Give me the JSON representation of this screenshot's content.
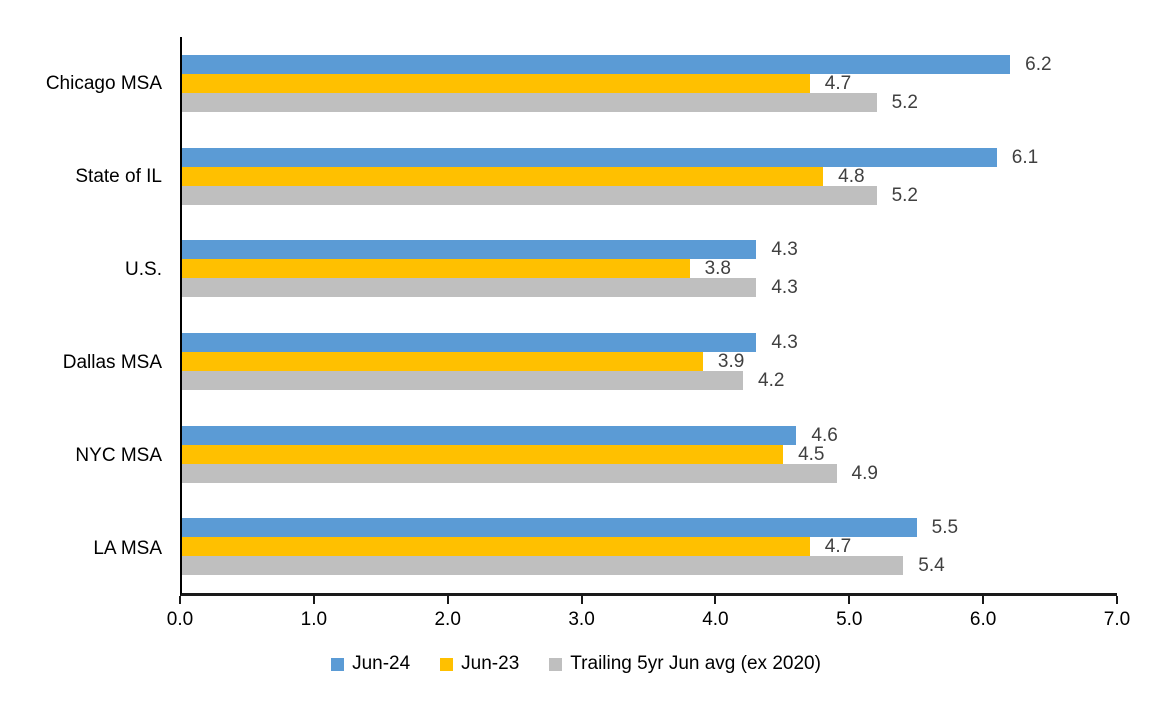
{
  "chart_data": {
    "type": "bar",
    "orientation": "horizontal",
    "title": "",
    "xlabel": "",
    "ylabel": "",
    "grid": false,
    "legend_position": "bottom",
    "xlim": [
      0,
      7
    ],
    "x_ticks": [
      "0.0",
      "1.0",
      "2.0",
      "3.0",
      "4.0",
      "5.0",
      "6.0",
      "7.0"
    ],
    "categories": [
      "Chicago MSA",
      "State of IL",
      "U.S.",
      "Dallas MSA",
      "NYC MSA",
      "LA MSA"
    ],
    "series": [
      {
        "name": "Jun-24",
        "color": "#5B9BD5",
        "values": [
          6.2,
          6.1,
          4.3,
          4.3,
          4.6,
          5.5
        ]
      },
      {
        "name": "Jun-23",
        "color": "#FFC000",
        "values": [
          4.7,
          4.8,
          3.8,
          3.9,
          4.5,
          4.7
        ]
      },
      {
        "name": "Trailing 5yr Jun avg (ex 2020)",
        "color": "#BFBFBF",
        "values": [
          5.2,
          5.2,
          4.3,
          4.2,
          4.9,
          5.4
        ]
      }
    ],
    "colors": {
      "axis": "#000000",
      "value_label": "#404040",
      "tick_label": "#000000",
      "category_label": "#000000",
      "background": "#FFFFFF"
    }
  }
}
